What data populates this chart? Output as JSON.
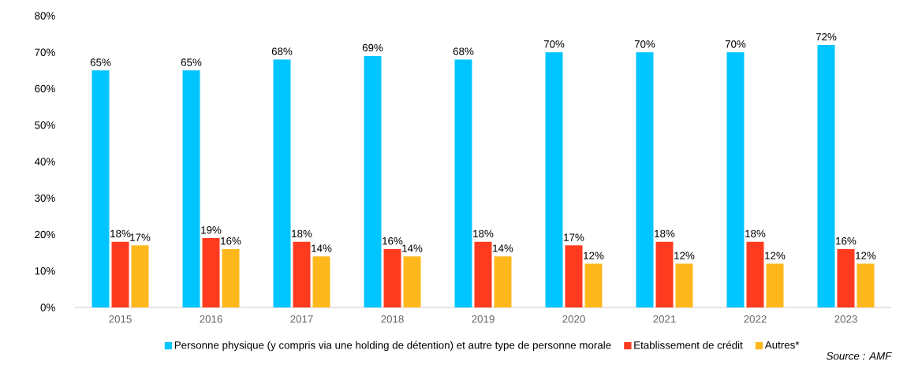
{
  "chart_data": {
    "type": "bar",
    "categories": [
      "2015",
      "2016",
      "2017",
      "2018",
      "2019",
      "2020",
      "2021",
      "2022",
      "2023"
    ],
    "series": [
      {
        "name": "Personne physique (y compris via une holding de détention) et autre type de personne morale",
        "color": "#00c5ff",
        "values": [
          65,
          65,
          68,
          69,
          68,
          70,
          70,
          70,
          72
        ],
        "value_labels": [
          "65%",
          "65%",
          "68%",
          "69%",
          "68%",
          "70%",
          "70%",
          "70%",
          "72%"
        ]
      },
      {
        "name": "Etablissement de crédit",
        "color": "#ff3b1f",
        "values": [
          18,
          19,
          18,
          16,
          18,
          17,
          18,
          18,
          16
        ],
        "value_labels": [
          "18%",
          "19%",
          "18%",
          "16%",
          "18%",
          "17%",
          "18%",
          "18%",
          "16%"
        ]
      },
      {
        "name": "Autres*",
        "color": "#ffb81c",
        "values": [
          17,
          16,
          14,
          14,
          14,
          12,
          12,
          12,
          12
        ],
        "value_labels": [
          "17%",
          "16%",
          "14%",
          "14%",
          "14%",
          "12%",
          "12%",
          "12%",
          "12%"
        ]
      }
    ],
    "ylim": [
      0,
      80
    ],
    "yticks": [
      {
        "value": 0,
        "label": "0%"
      },
      {
        "value": 10,
        "label": "10%"
      },
      {
        "value": 20,
        "label": "20%"
      },
      {
        "value": 30,
        "label": "30%"
      },
      {
        "value": 40,
        "label": "40%"
      },
      {
        "value": 50,
        "label": "50%"
      },
      {
        "value": 60,
        "label": "60%"
      },
      {
        "value": 70,
        "label": "70%"
      },
      {
        "value": 80,
        "label": "80%"
      }
    ],
    "grid": false,
    "legend": "bottom",
    "annotations": [
      "Source : AMF"
    ]
  }
}
